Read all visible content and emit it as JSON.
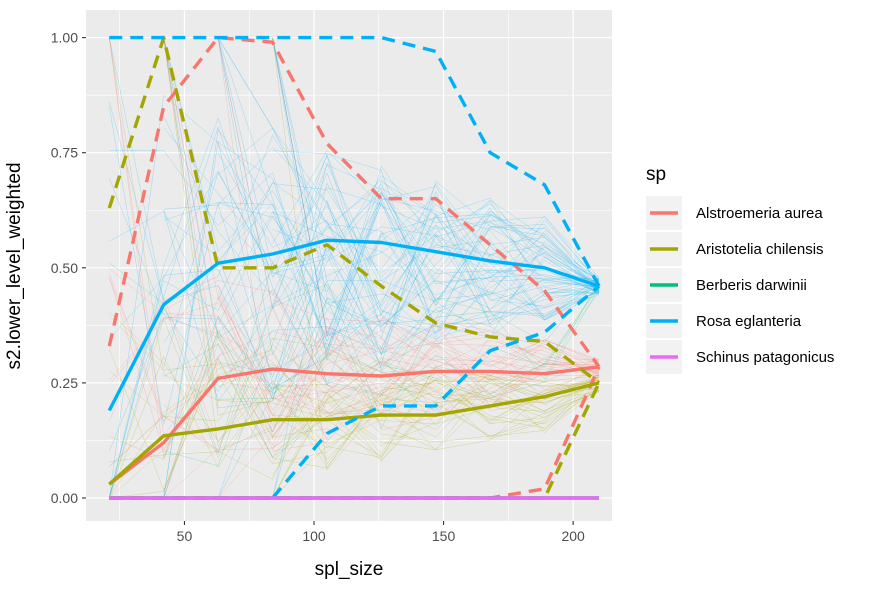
{
  "chart_data": {
    "type": "line",
    "title": "",
    "xlabel": "spl_size",
    "ylabel": "s2.lower_level_weighted",
    "xlim": [
      12,
      215
    ],
    "ylim": [
      -0.05,
      1.06
    ],
    "x_ticks": [
      50,
      100,
      150,
      200
    ],
    "x_tick_labels": [
      "50",
      "100",
      "150",
      "200"
    ],
    "y_ticks": [
      0,
      0.25,
      0.5,
      0.75,
      1.0
    ],
    "y_tick_labels": [
      "0.00",
      "0.25",
      "0.50",
      "0.75",
      "1.00"
    ],
    "grid": true,
    "legend": {
      "title": "sp",
      "position": "right",
      "entries": [
        "Alstroemeria aurea",
        "Aristotelia chilensis",
        "Berberis darwinii",
        "Rosa eglanteria",
        "Schinus patagonicus"
      ]
    },
    "colors": {
      "Alstroemeria aurea": "#F8766D",
      "Aristotelia chilensis": "#A3A500",
      "Berberis darwinii": "#00BF7D",
      "Rosa eglanteria": "#00B0F6",
      "Schinus patagonicus": "#E76BF3"
    },
    "x": [
      21,
      42,
      63,
      84,
      105,
      126,
      147,
      168,
      189,
      210
    ],
    "series": [
      {
        "name": "Alstroemeria aurea",
        "stat": "mean",
        "values": [
          0.03,
          0.12,
          0.26,
          0.28,
          0.27,
          0.265,
          0.275,
          0.275,
          0.27,
          0.285
        ]
      },
      {
        "name": "Alstroemeria aurea",
        "stat": "upper",
        "values": [
          0.33,
          0.85,
          1.0,
          0.99,
          0.77,
          0.65,
          0.65,
          0.55,
          0.45,
          0.285
        ]
      },
      {
        "name": "Alstroemeria aurea",
        "stat": "lower",
        "values": [
          0.0,
          0.0,
          0.0,
          0.0,
          0.0,
          0.0,
          0.0,
          0.0,
          0.02,
          0.285
        ]
      },
      {
        "name": "Aristotelia chilensis",
        "stat": "mean",
        "values": [
          0.03,
          0.135,
          0.15,
          0.17,
          0.17,
          0.18,
          0.18,
          0.2,
          0.22,
          0.25
        ]
      },
      {
        "name": "Aristotelia chilensis",
        "stat": "upper",
        "values": [
          0.63,
          1.0,
          0.5,
          0.5,
          0.55,
          0.46,
          0.38,
          0.35,
          0.34,
          0.25
        ]
      },
      {
        "name": "Aristotelia chilensis",
        "stat": "lower",
        "values": [
          0.0,
          0.0,
          0.0,
          0.0,
          0.0,
          0.0,
          0.0,
          0.0,
          0.0,
          0.25
        ]
      },
      {
        "name": "Berberis darwinii",
        "stat": "mean",
        "values": [
          0.0,
          0.0,
          0.0,
          0.0,
          0.0,
          0.0,
          0.0,
          0.0,
          0.0,
          0.0
        ]
      },
      {
        "name": "Rosa eglanteria",
        "stat": "mean",
        "values": [
          0.19,
          0.42,
          0.51,
          0.53,
          0.56,
          0.555,
          0.535,
          0.515,
          0.5,
          0.46
        ]
      },
      {
        "name": "Rosa eglanteria",
        "stat": "upper",
        "values": [
          1.0,
          1.0,
          1.0,
          1.0,
          1.0,
          1.0,
          0.97,
          0.75,
          0.68,
          0.46
        ]
      },
      {
        "name": "Rosa eglanteria",
        "stat": "lower",
        "values": [
          null,
          null,
          null,
          0.0,
          0.14,
          0.2,
          0.2,
          0.32,
          0.36,
          0.46
        ]
      },
      {
        "name": "Schinus patagonicus",
        "stat": "mean",
        "values": [
          0.0,
          0.0,
          0.0,
          0.0,
          0.0,
          0.0,
          0.0,
          0.0,
          0.0,
          0.0
        ]
      }
    ]
  }
}
